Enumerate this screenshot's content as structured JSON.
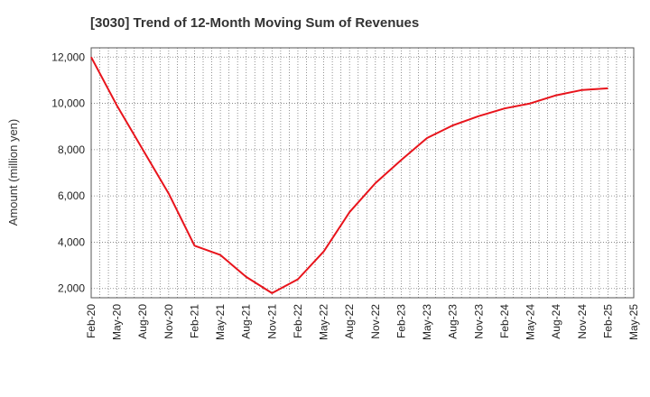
{
  "chart_data": {
    "type": "line",
    "title": "[3030]  Trend of 12-Month Moving Sum of Revenues",
    "xlabel": "",
    "ylabel": "Amount (million yen)",
    "ylim": [
      1600,
      12400
    ],
    "yticks": [
      2000,
      4000,
      6000,
      8000,
      10000,
      12000
    ],
    "ytick_labels": [
      "2,000",
      "4,000",
      "6,000",
      "8,000",
      "10,000",
      "12,000"
    ],
    "x_start": "Feb-20",
    "x_end": "May-25",
    "x_tick_labels": [
      "Feb-20",
      "May-20",
      "Aug-20",
      "Nov-20",
      "Feb-21",
      "May-21",
      "Aug-21",
      "Nov-21",
      "Feb-22",
      "May-22",
      "Aug-22",
      "Nov-22",
      "Feb-23",
      "May-23",
      "Aug-23",
      "Nov-23",
      "Feb-24",
      "May-24",
      "Aug-24",
      "Nov-24",
      "Feb-25",
      "May-25"
    ],
    "grid": true,
    "series": [
      {
        "color": "#e8141c",
        "x": [
          "Feb-20",
          "May-20",
          "Aug-20",
          "Nov-20",
          "Feb-21",
          "May-21",
          "Aug-21",
          "Nov-21",
          "Feb-22",
          "May-22",
          "Aug-22",
          "Nov-22",
          "Feb-23",
          "May-23",
          "Aug-23",
          "Nov-23",
          "Feb-24",
          "May-24",
          "Aug-24",
          "Nov-24",
          "Feb-25"
        ],
        "values": [
          12000,
          9900,
          8000,
          6100,
          3850,
          3450,
          2500,
          1800,
          2400,
          3600,
          5300,
          6550,
          7550,
          8500,
          9050,
          9450,
          9780,
          10000,
          10350,
          10580,
          10650
        ]
      }
    ]
  }
}
